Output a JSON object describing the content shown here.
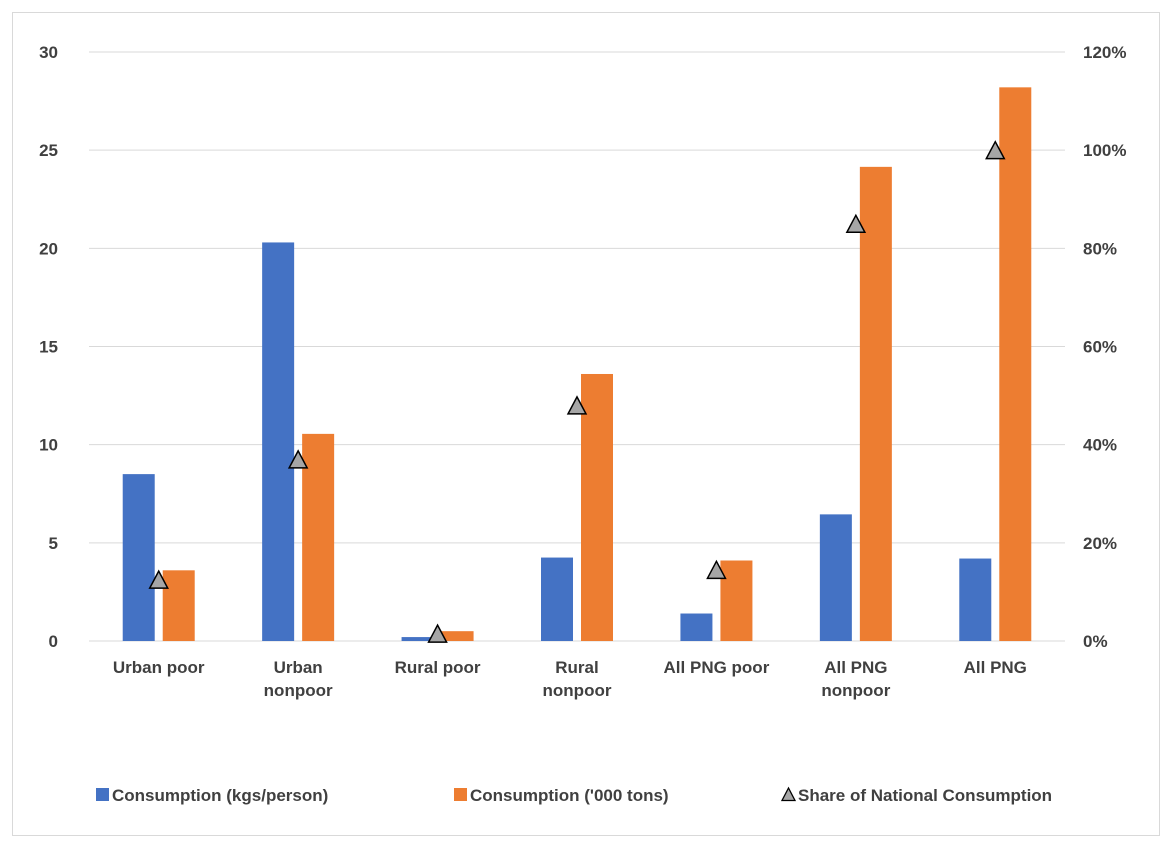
{
  "chart_data": {
    "type": "bar",
    "title": "",
    "xlabel": "",
    "ylabel": "",
    "categories": [
      [
        "Urban poor"
      ],
      [
        "Urban",
        "nonpoor"
      ],
      [
        "Rural poor"
      ],
      [
        "Rural",
        "nonpoor"
      ],
      [
        "All PNG poor"
      ],
      [
        "All PNG",
        "nonpoor"
      ],
      [
        "All PNG"
      ]
    ],
    "series": [
      {
        "name": "Consumption (kgs/person)",
        "axis": "left",
        "kind": "bar",
        "color": "#4472c4",
        "values": [
          8.5,
          20.3,
          0.2,
          4.25,
          1.4,
          6.45,
          4.2
        ]
      },
      {
        "name": "Consumption ('000 tons)",
        "axis": "left",
        "kind": "bar",
        "color": "#ed7d31",
        "values": [
          3.6,
          10.55,
          0.5,
          13.6,
          4.1,
          24.15,
          28.2
        ]
      },
      {
        "name": "Share of National Consumption",
        "axis": "right",
        "kind": "marker-triangle",
        "color": "#a6a6a6",
        "values": [
          0.125,
          0.37,
          0.015,
          0.48,
          0.145,
          0.85,
          1.0
        ]
      }
    ],
    "y_left": {
      "min": 0,
      "max": 30,
      "ticks": [
        "0",
        "5",
        "10",
        "15",
        "20",
        "25",
        "30"
      ]
    },
    "y_right": {
      "min": 0,
      "max": 1.2,
      "ticks": [
        "0%",
        "20%",
        "40%",
        "60%",
        "80%",
        "100%",
        "120%"
      ]
    },
    "grid": true,
    "legend_position": "bottom"
  }
}
